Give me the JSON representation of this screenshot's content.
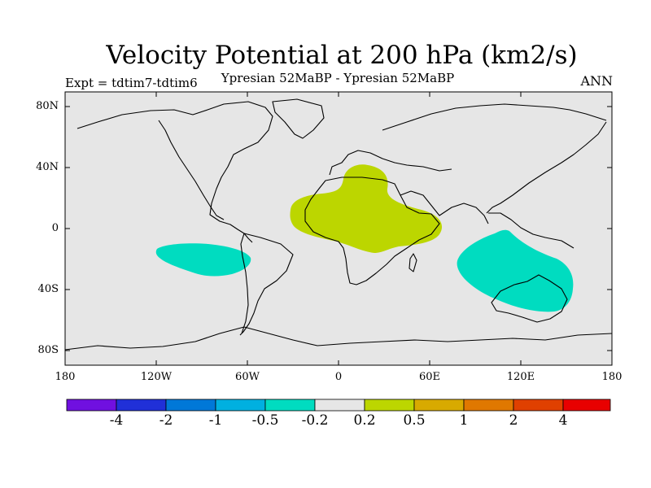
{
  "map": {
    "title": "Velocity Potential at 200 hPa (km2/s)",
    "subtitle": "Ypresian  52MaBP - Ypresian  52MaBP",
    "experiment": "Expt = tdtim7-tdtim6",
    "season": "ANN",
    "lat_labels": [
      "80N",
      "40N",
      "0",
      "40S",
      "80S"
    ],
    "lon_labels": [
      "180",
      "120W",
      "60W",
      "0",
      "60E",
      "120E",
      "180"
    ],
    "colors": {
      "background": "#e6e6e6",
      "positive_fill": "#bcd600",
      "negative_fill": "#00dcc0",
      "coastline": "#000000"
    }
  },
  "colorbar": {
    "colors": [
      "#7010e0",
      "#2030d8",
      "#0078d8",
      "#00b0e0",
      "#00dcc0",
      "#e6e6e6",
      "#bcd600",
      "#d8aa00",
      "#e07800",
      "#e04000",
      "#e80000"
    ],
    "labels": [
      "-4",
      "-2",
      "-1",
      "-0.5",
      "-0.2",
      "0.2",
      "0.5",
      "1",
      "2",
      "4"
    ]
  }
}
